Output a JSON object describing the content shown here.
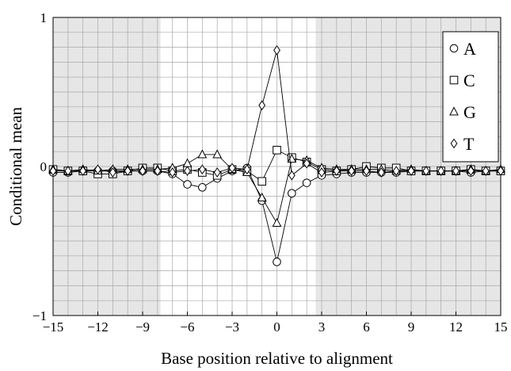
{
  "chart_data": {
    "type": "line",
    "title": "",
    "xlabel": "Base position relative to alignment",
    "ylabel": "Conditional mean",
    "xlim": [
      -15,
      15
    ],
    "ylim": [
      -1,
      1
    ],
    "x_ticks": [
      -15,
      -12,
      -9,
      -6,
      -3,
      0,
      3,
      6,
      9,
      12,
      15
    ],
    "x_tick_labels": [
      "−15",
      "−12",
      "−9",
      "−6",
      "−3",
      "0",
      "3",
      "6",
      "9",
      "12",
      "15"
    ],
    "y_ticks": [
      -1,
      0,
      1
    ],
    "y_tick_labels": [
      "−1",
      "0",
      "1"
    ],
    "grid": true,
    "shaded_regions": [
      [
        -15,
        -7.8
      ],
      [
        2.6,
        15
      ]
    ],
    "legend": {
      "position": "top-right"
    },
    "x": [
      -15,
      -14,
      -13,
      -12,
      -11,
      -10,
      -9,
      -8,
      -7,
      -6,
      -5,
      -4,
      -3,
      -2,
      -1,
      0,
      1,
      2,
      3,
      4,
      5,
      6,
      7,
      8,
      9,
      10,
      11,
      12,
      13,
      14,
      15
    ],
    "series": [
      {
        "name": "A",
        "marker": "circle",
        "values": [
          -0.04,
          -0.04,
          -0.03,
          -0.03,
          -0.03,
          -0.03,
          -0.03,
          -0.03,
          -0.05,
          -0.12,
          -0.14,
          -0.08,
          -0.03,
          -0.01,
          -0.23,
          -0.64,
          -0.18,
          -0.11,
          -0.06,
          -0.05,
          -0.04,
          -0.04,
          -0.04,
          -0.04,
          -0.03,
          -0.03,
          -0.03,
          -0.03,
          -0.04,
          -0.03,
          -0.03
        ]
      },
      {
        "name": "C",
        "marker": "square",
        "values": [
          -0.02,
          -0.03,
          -0.03,
          -0.05,
          -0.05,
          -0.03,
          -0.01,
          -0.01,
          -0.03,
          -0.02,
          -0.04,
          -0.06,
          -0.02,
          -0.03,
          -0.1,
          0.11,
          0.06,
          0.03,
          -0.02,
          -0.03,
          -0.02,
          0.0,
          -0.01,
          -0.01,
          -0.03,
          -0.03,
          -0.03,
          -0.03,
          -0.02,
          -0.03,
          -0.03
        ]
      },
      {
        "name": "G",
        "marker": "triangle",
        "values": [
          -0.02,
          -0.03,
          -0.02,
          -0.03,
          -0.02,
          -0.02,
          -0.02,
          -0.02,
          -0.01,
          0.02,
          0.08,
          0.08,
          -0.02,
          -0.04,
          -0.21,
          -0.38,
          0.05,
          0.04,
          -0.01,
          -0.02,
          -0.02,
          -0.02,
          -0.02,
          -0.03,
          -0.02,
          -0.03,
          -0.03,
          -0.03,
          -0.02,
          -0.03,
          -0.02
        ]
      },
      {
        "name": "T",
        "marker": "diamond",
        "values": [
          -0.03,
          -0.03,
          -0.03,
          -0.02,
          -0.04,
          -0.03,
          -0.03,
          -0.03,
          -0.04,
          -0.03,
          -0.02,
          -0.04,
          -0.01,
          -0.02,
          0.41,
          0.78,
          -0.06,
          0.02,
          -0.04,
          -0.03,
          -0.03,
          -0.03,
          -0.04,
          -0.03,
          -0.03,
          -0.03,
          -0.03,
          -0.03,
          -0.03,
          -0.03,
          -0.03
        ]
      }
    ]
  }
}
